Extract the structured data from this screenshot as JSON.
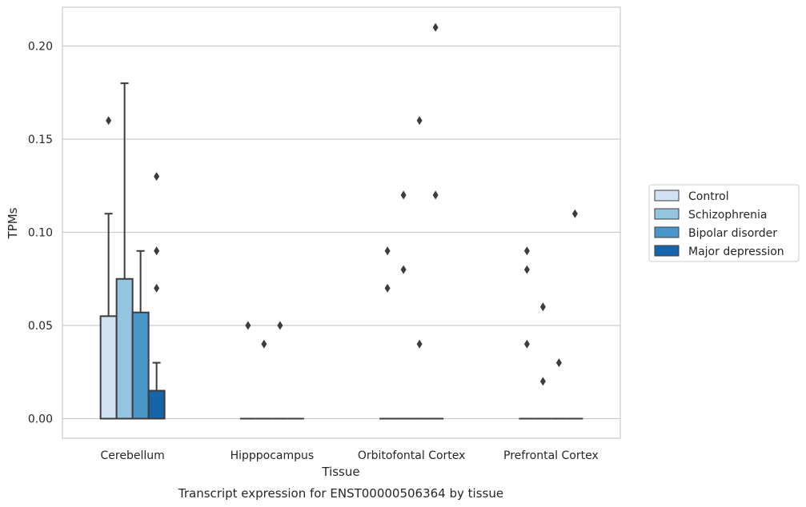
{
  "chart_data": {
    "type": "bar",
    "title": "",
    "caption": "Transcript expression for ENST00000506364 by tissue",
    "xlabel": "Tissue",
    "ylabel": "TPMs",
    "ylim": [
      -0.01,
      0.22
    ],
    "yticks": [
      "0.00",
      "0.05",
      "0.10",
      "0.15",
      "0.20"
    ],
    "ytick_values": [
      0,
      0.05,
      0.1,
      0.15,
      0.2
    ],
    "grid": "horizontal",
    "legend_position": "right",
    "categories": [
      "Cerebellum",
      "Hipppocampus",
      "Orbitofontal Cortex",
      "Prefrontal Cortex"
    ],
    "series": [
      {
        "name": "Control",
        "color": "#d0e1f2",
        "values": [
          0.055,
          0.0,
          0.0,
          0.0
        ],
        "upper_whisker": [
          0.11,
          null,
          null,
          null
        ],
        "outliers": [
          [
            0.16
          ],
          [
            0.05
          ],
          [
            0.09,
            0.07
          ],
          [
            0.09,
            0.08,
            0.04
          ]
        ]
      },
      {
        "name": "Schizophrenia",
        "color": "#94c4df",
        "values": [
          0.075,
          0.0,
          0.0,
          0.0
        ],
        "upper_whisker": [
          0.18,
          null,
          null,
          null
        ],
        "outliers": [
          [],
          [
            0.04
          ],
          [
            0.12,
            0.08
          ],
          [
            0.06,
            0.02
          ]
        ]
      },
      {
        "name": "Bipolar disorder",
        "color": "#4a98c9",
        "values": [
          0.057,
          0.0,
          0.0,
          0.0
        ],
        "upper_whisker": [
          0.09,
          null,
          null,
          null
        ],
        "outliers": [
          [],
          [
            0.05
          ],
          [
            0.16,
            0.04
          ],
          [
            0.03
          ]
        ]
      },
      {
        "name": "Major depression",
        "color": "#1764ab",
        "values": [
          0.015,
          0.0,
          0.0,
          0.0
        ],
        "upper_whisker": [
          0.03,
          null,
          null,
          null
        ],
        "outliers": [
          [
            0.13,
            0.09,
            0.07
          ],
          [],
          [
            0.21,
            0.12
          ],
          [
            0.11
          ]
        ]
      }
    ],
    "edge_color": "#3c3c3c",
    "grid_color": "#cccccc",
    "frame_color": "#cccccc"
  }
}
